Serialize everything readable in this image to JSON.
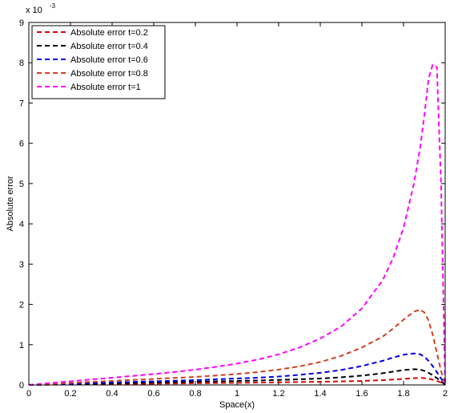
{
  "chart_data": {
    "type": "line",
    "title": "",
    "xlabel": "Space(x)",
    "ylabel": "Absolute error",
    "y_exponent_label": "x 10",
    "y_exponent_power": "-3",
    "xlim": [
      0,
      2
    ],
    "ylim": [
      0,
      9
    ],
    "xticks": [
      "0",
      "0.2",
      "0.4",
      "0.6",
      "0.8",
      "1",
      "1.2",
      "1.4",
      "1.6",
      "1.8",
      "2"
    ],
    "yticks": [
      "0",
      "1",
      "2",
      "3",
      "4",
      "5",
      "6",
      "7",
      "8",
      "9"
    ],
    "grid": false,
    "legend_position": "top-left",
    "x": [
      0,
      0.1,
      0.2,
      0.3,
      0.4,
      0.5,
      0.6,
      0.7,
      0.8,
      0.9,
      1.0,
      1.1,
      1.2,
      1.3,
      1.4,
      1.5,
      1.6,
      1.7,
      1.75,
      1.8,
      1.85,
      1.88,
      1.9,
      1.92,
      1.94,
      1.96,
      1.98,
      2.0
    ],
    "series": [
      {
        "name": "Absolute error t=0.2",
        "color": "#e60000",
        "values": [
          0,
          0.006,
          0.011,
          0.016,
          0.021,
          0.026,
          0.031,
          0.036,
          0.041,
          0.047,
          0.052,
          0.058,
          0.064,
          0.071,
          0.079,
          0.088,
          0.1,
          0.12,
          0.135,
          0.15,
          0.17,
          0.175,
          0.17,
          0.155,
          0.13,
          0.1,
          0.06,
          0.0
        ]
      },
      {
        "name": "Absolute error t=0.4",
        "color": "#000000",
        "values": [
          0,
          0.01,
          0.02,
          0.03,
          0.04,
          0.05,
          0.06,
          0.07,
          0.08,
          0.09,
          0.1,
          0.11,
          0.125,
          0.14,
          0.16,
          0.19,
          0.23,
          0.29,
          0.33,
          0.37,
          0.39,
          0.38,
          0.35,
          0.3,
          0.24,
          0.17,
          0.09,
          0.0
        ]
      },
      {
        "name": "Absolute error t=0.6",
        "color": "#0000e6",
        "values": [
          0,
          0.015,
          0.03,
          0.045,
          0.06,
          0.075,
          0.09,
          0.105,
          0.12,
          0.14,
          0.16,
          0.18,
          0.21,
          0.25,
          0.3,
          0.37,
          0.47,
          0.6,
          0.68,
          0.75,
          0.78,
          0.76,
          0.7,
          0.6,
          0.47,
          0.32,
          0.16,
          0.0
        ]
      },
      {
        "name": "Absolute error t=0.8",
        "color": "#d04020",
        "values": [
          0,
          0.025,
          0.05,
          0.075,
          0.1,
          0.125,
          0.15,
          0.175,
          0.2,
          0.235,
          0.27,
          0.32,
          0.38,
          0.46,
          0.57,
          0.72,
          0.93,
          1.2,
          1.4,
          1.62,
          1.82,
          1.87,
          1.8,
          1.6,
          1.25,
          0.8,
          0.35,
          0.0
        ]
      },
      {
        "name": "Absolute error t=1",
        "color": "#ff00ff",
        "values": [
          0,
          0.045,
          0.09,
          0.135,
          0.18,
          0.225,
          0.27,
          0.32,
          0.38,
          0.45,
          0.53,
          0.63,
          0.76,
          0.93,
          1.15,
          1.45,
          1.9,
          2.6,
          3.15,
          3.9,
          5.0,
          5.9,
          6.7,
          7.6,
          7.95,
          7.9,
          5.0,
          0.0
        ]
      }
    ]
  }
}
